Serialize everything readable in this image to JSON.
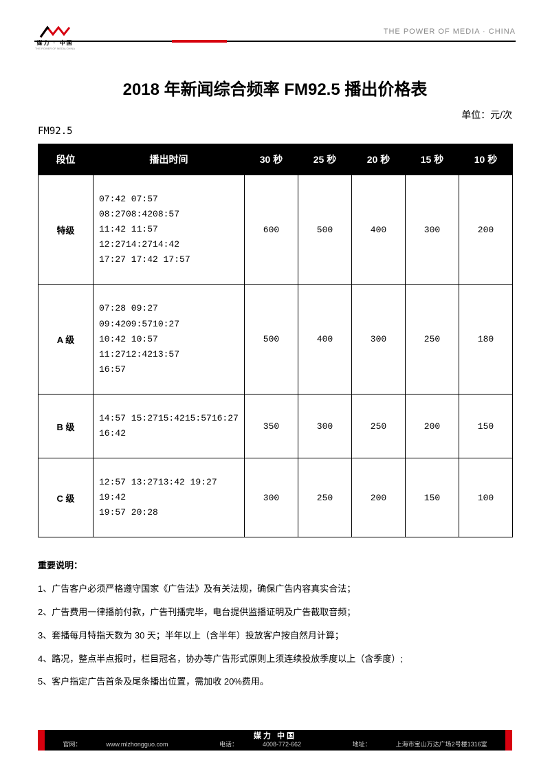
{
  "header": {
    "tag": "THE POWER OF MEDIA · CHINA",
    "logo_text": "媒力 · 中国",
    "logo_sub": "THE POWER OF MEDIA CHINA"
  },
  "title": "2018 年新闻综合频率 FM92.5 播出价格表",
  "unit": "单位：元/次",
  "channel": "FM92.5",
  "columns": [
    "段位",
    "播出时间",
    "30 秒",
    "25 秒",
    "20 秒",
    "15 秒",
    "10 秒"
  ],
  "rows": [
    {
      "level": "特级",
      "time": "07:42 07:57 08:2708:4208:57\n11:42 11:57 12:2714:2714:42\n17:27 17:42 17:57",
      "p30": "600",
      "p25": "500",
      "p20": "400",
      "p15": "300",
      "p10": "200"
    },
    {
      "level": "A 级",
      "time": "07:28 09:27 09:4209:5710:27\n10:42 10:57 11:2712:4213:57\n16:57",
      "p30": "500",
      "p25": "400",
      "p20": "300",
      "p15": "250",
      "p10": "180"
    },
    {
      "level": "B 级",
      "time": "14:57  15:2715:4215:5716:27\n16:42",
      "p30": "350",
      "p25": "300",
      "p20": "250",
      "p15": "200",
      "p10": "150"
    },
    {
      "level": "C 级",
      "time": "12:57  13:2713:42 19:27  19:42\n19:57  20:28",
      "p30": "300",
      "p25": "250",
      "p20": "200",
      "p15": "150",
      "p10": "100"
    }
  ],
  "notes_title": "重要说明：",
  "notes": [
    "1、广告客户必须严格遵守国家《广告法》及有关法规，确保广告内容真实合法；",
    "2、广告费用一律播前付款，广告刊播完毕，电台提供监播证明及广告截取音频；",
    "3、套播每月特指天数为 30 天；半年以上（含半年）投放客户按自然月计算；",
    "4、路况，整点半点报时，栏目冠名，协办等广告形式原则上须连续投放季度以上（含季度）;",
    "5、客户指定广告首条及尾条播出位置，需加收 20%费用。"
  ],
  "footer": {
    "brand": "媒力 中国",
    "site_label": "官网：",
    "site": "www.mlzhongguo.com",
    "phone_label": "电话：",
    "phone": "4008-772-662",
    "addr_label": "地址：",
    "addr": "上海市宝山万达广场2号楼1316室"
  }
}
